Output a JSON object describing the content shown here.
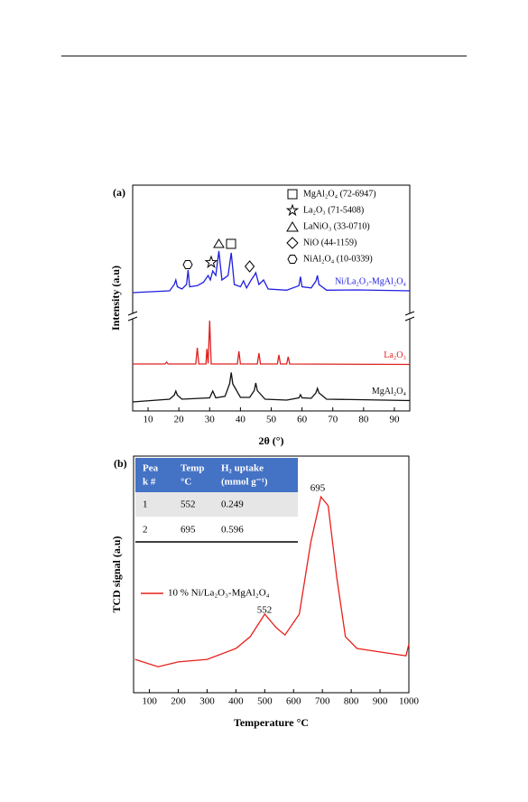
{
  "chart_data": [
    {
      "type": "line",
      "panel_label": "(a)",
      "xlabel": "2θ (°)",
      "ylabel": "Intensity (a.u)",
      "xlim": [
        5,
        95
      ],
      "xticks": [
        10,
        20,
        30,
        40,
        50,
        60,
        70,
        80,
        90
      ],
      "ylim": [
        0,
        100
      ],
      "legend": [
        {
          "symbol": "square",
          "label": "MgAl₂O₄ (72-6947)"
        },
        {
          "symbol": "star",
          "label": "La₂O₃ (71-5408)"
        },
        {
          "symbol": "triangle",
          "label": "LaNiO₃ (33-0710)"
        },
        {
          "symbol": "diamond",
          "label": "NiO (44-1159)"
        },
        {
          "symbol": "hexagon",
          "label": "NiAl₂O₄ (10-0339)"
        }
      ],
      "series": [
        {
          "name": "Ni/La₂O₃-MgAl₂O₄",
          "color": "#1f1fe0",
          "x": [
            5,
            17,
            18.5,
            19,
            19.5,
            21,
            22.5,
            23,
            23.5,
            26,
            28,
            29.5,
            30.2,
            31,
            32,
            33,
            34,
            36,
            37,
            38,
            40,
            41,
            42,
            43.5,
            44.5,
            45,
            46,
            47.5,
            49,
            55,
            59,
            59.5,
            60,
            63,
            64.5,
            65,
            65.5,
            68,
            78,
            95
          ],
          "values": [
            52.4,
            53.2,
            56,
            58,
            55,
            54,
            56,
            62.4,
            55,
            55.5,
            57,
            60,
            58,
            62,
            60,
            70.8,
            58,
            60,
            70,
            56,
            55,
            57.6,
            54.5,
            58,
            60,
            61.2,
            56,
            58,
            54,
            53.5,
            55.5,
            59.5,
            55,
            54.5,
            57.5,
            60,
            56,
            53.5,
            53.6,
            53.2
          ]
        },
        {
          "name": "La₂O₃",
          "color": "#e02020",
          "x": [
            5,
            15.5,
            16,
            16.5,
            25.5,
            26,
            26.5,
            28.8,
            29.1,
            29.5,
            30,
            30.5,
            39,
            39.5,
            40,
            45.5,
            46,
            46.5,
            52,
            52.5,
            53,
            55,
            55.5,
            56,
            95
          ],
          "values": [
            20.8,
            20.8,
            21.6,
            20.8,
            20.8,
            28,
            20.8,
            20.8,
            27.5,
            21,
            40,
            20.8,
            20.8,
            26.4,
            20.8,
            20.8,
            25.6,
            20.8,
            20.8,
            24.8,
            20.8,
            20.8,
            24,
            20.8,
            20.6
          ]
        },
        {
          "name": "MgAl₂O₄",
          "color": "#111111",
          "x": [
            5,
            17,
            18.5,
            19,
            19.5,
            21,
            30,
            31,
            32,
            35,
            36.5,
            37,
            37.5,
            40,
            43,
            44.5,
            45,
            45.5,
            48,
            55,
            59,
            59.5,
            60,
            63,
            64.5,
            65,
            65.5,
            68,
            78,
            95
          ],
          "values": [
            4,
            5.2,
            7,
            8.8,
            7,
            5.2,
            5.8,
            8.8,
            5.8,
            6.5,
            12,
            17,
            12,
            6,
            6,
            9,
            12.4,
            9,
            5.2,
            4.8,
            5.8,
            7.2,
            5.8,
            5.6,
            8,
            10,
            8,
            5.2,
            5,
            4.6
          ]
        }
      ]
    },
    {
      "type": "line",
      "panel_label": "(b)",
      "xlabel": "Temperature °C",
      "ylabel": "TCD signal (a.u)",
      "xlim": [
        45,
        1000
      ],
      "xticks": [
        100,
        200,
        300,
        400,
        500,
        600,
        700,
        800,
        900,
        1000
      ],
      "ylim": [
        0,
        100
      ],
      "series": [
        {
          "name": "10 % Ni/La₂O₃-MgAl₂O₄",
          "color": "#e8201c",
          "x": [
            50,
            130,
            200,
            300,
            400,
            450,
            480,
            500,
            540,
            570,
            620,
            660,
            695,
            720,
            750,
            780,
            820,
            900,
            990,
            1000
          ],
          "values": [
            14.1,
            11,
            13,
            14.1,
            18.7,
            23.7,
            29.4,
            33.2,
            27.5,
            24.4,
            33.2,
            63.7,
            82.8,
            79,
            48.5,
            23.7,
            18.7,
            17.2,
            15.6,
            20.6
          ]
        }
      ],
      "annotations": [
        552,
        695
      ],
      "table": {
        "header": [
          [
            "Pea",
            "k #"
          ],
          [
            "Temp",
            "°C"
          ],
          [
            "H₂ uptake",
            "(mmol g⁻¹)"
          ]
        ],
        "rows": [
          [
            1,
            552,
            0.249
          ],
          [
            2,
            695,
            0.596
          ]
        ]
      }
    }
  ]
}
